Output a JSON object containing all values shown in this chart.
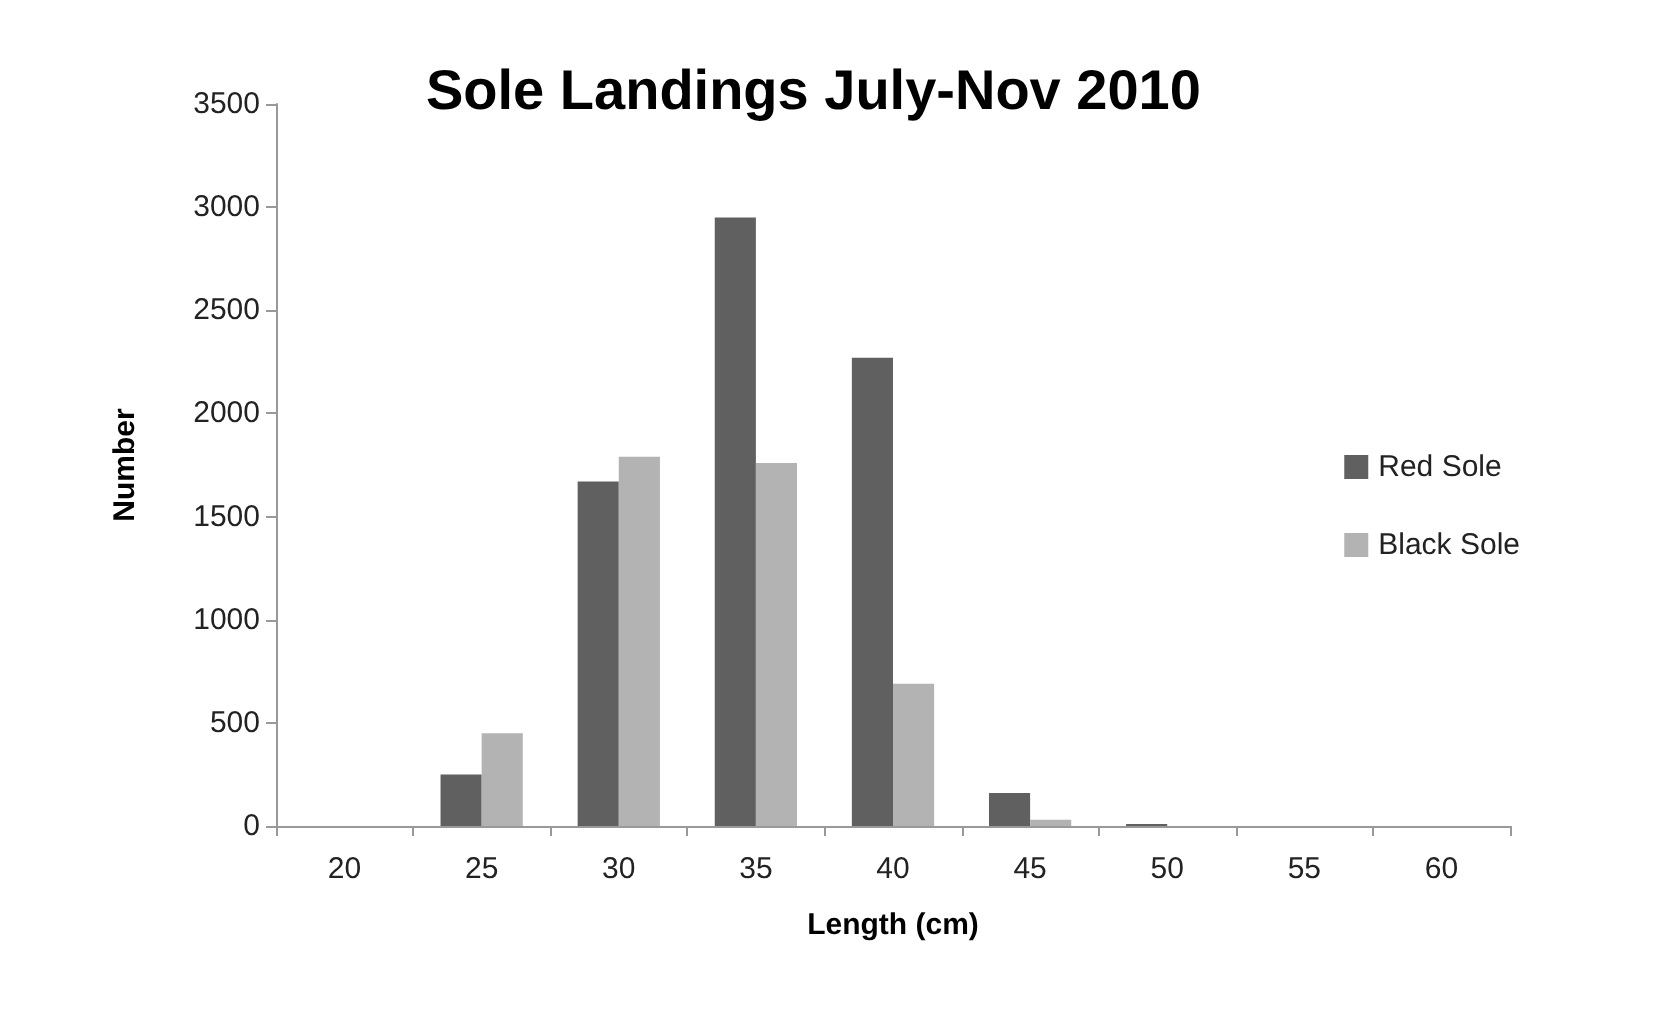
{
  "chart_data": {
    "type": "bar",
    "title": "Sole Landings July-Nov 2010",
    "xlabel": "Length (cm)",
    "ylabel": "Number",
    "categories": [
      "20",
      "25",
      "30",
      "35",
      "40",
      "45",
      "50",
      "55",
      "60"
    ],
    "series": [
      {
        "name": "Red Sole",
        "color": "#606060",
        "values": [
          0,
          250,
          1670,
          2950,
          2270,
          160,
          10,
          0,
          0
        ]
      },
      {
        "name": "Black Sole",
        "color": "#b3b3b3",
        "values": [
          0,
          450,
          1790,
          1760,
          690,
          30,
          0,
          0,
          0
        ]
      }
    ],
    "ylim": [
      0,
      3500
    ],
    "yticks": [
      0,
      500,
      1000,
      1500,
      2000,
      2500,
      3000,
      3500
    ],
    "grid": false,
    "legend": "right"
  }
}
